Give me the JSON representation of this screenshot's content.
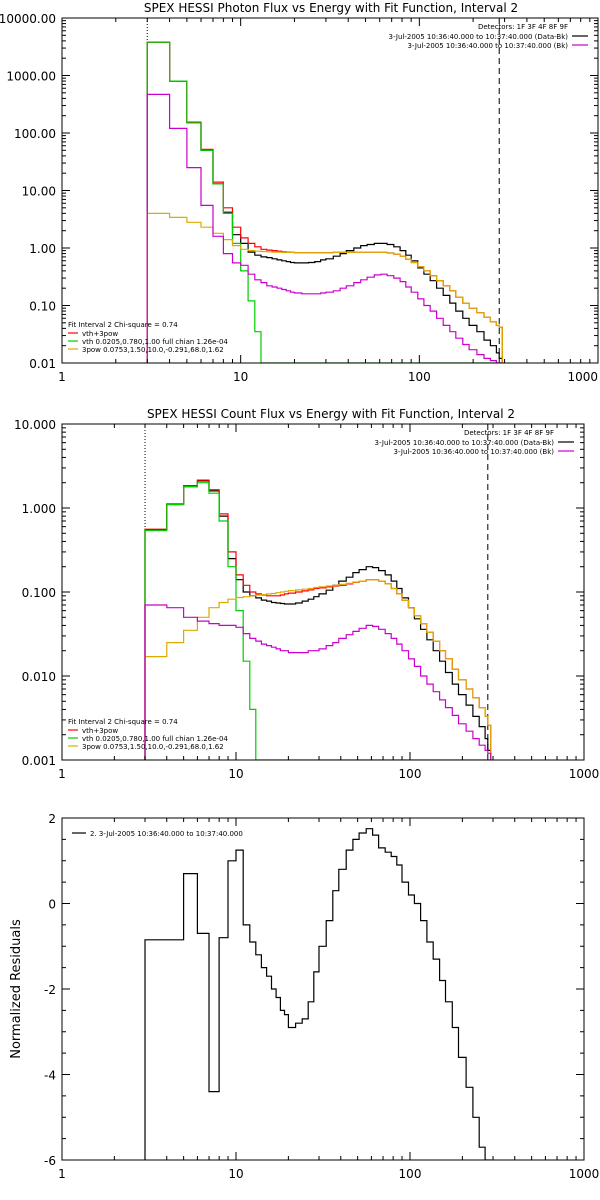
{
  "chart_data": [
    {
      "type": "line",
      "title": "SPEX HESSI Photon Flux vs Energy with Fit Function, Interval 2",
      "xlabel": "",
      "ylabel": "",
      "x_scale": "log",
      "y_scale": "log",
      "xlim": [
        1,
        1000
      ],
      "ylim": [
        0.01,
        10000
      ],
      "x_ticks": [
        "1",
        "10",
        "100",
        "1000"
      ],
      "y_ticks": [
        "0.01",
        "0.10",
        "1.00",
        "10.00",
        "100.00",
        "1000.00",
        "10000.00"
      ],
      "grid": false,
      "vlines": [
        {
          "x": 3,
          "style": "dotted"
        },
        {
          "x": 280,
          "style": "dashed"
        }
      ],
      "legend_topright": {
        "title": "Detectors: 1F 3F 4F 8F 9F",
        "entries": [
          {
            "text": "3-Jul-2005 10:36:40.000 to 10:37:40.000 (Data-Bk)",
            "color": "#000000"
          },
          {
            "text": "3-Jul-2005 10:36:40.000 to 10:37:40.000 (Bk)",
            "color": "#cc00cc"
          }
        ]
      },
      "legend_bottomleft": {
        "title": "Fit Interval  2   Chi-square = 0.74",
        "entries": [
          {
            "text": "vth+3pow",
            "color": "#ff0000"
          },
          {
            "text": "vth 0.0205,0.780,1.00  full chian 1.26e-04",
            "color": "#00cc00"
          },
          {
            "text": "3pow 0.0753,1.50,10.0,-0.291,68.0,1.62",
            "color": "#ddaa00"
          }
        ]
      },
      "x": [
        3,
        4,
        5,
        6,
        7,
        8,
        9,
        10,
        11,
        12,
        13,
        14,
        15,
        16,
        17,
        18,
        19,
        20,
        22,
        24,
        26,
        28,
        30,
        33,
        36,
        39,
        43,
        47,
        51,
        56,
        61,
        66,
        72,
        78,
        84,
        90,
        98,
        106,
        115,
        125,
        136,
        148,
        160,
        175,
        190,
        210,
        230,
        250,
        270,
        280
      ],
      "series": [
        {
          "color": "#000000",
          "values": [
            3800,
            800,
            150,
            50,
            13,
            4.2,
            1.7,
            1.2,
            0.85,
            0.75,
            0.7,
            0.68,
            0.65,
            0.62,
            0.6,
            0.58,
            0.56,
            0.55,
            0.55,
            0.56,
            0.58,
            0.62,
            0.65,
            0.72,
            0.8,
            0.9,
            1.0,
            1.1,
            1.15,
            1.2,
            1.2,
            1.15,
            1.05,
            0.9,
            0.75,
            0.6,
            0.45,
            0.35,
            0.27,
            0.2,
            0.15,
            0.11,
            0.08,
            0.06,
            0.045,
            0.035,
            0.025,
            0.02,
            0.015,
            0.012
          ]
        },
        {
          "color": "#ff0000",
          "values": [
            3800,
            800,
            155,
            52,
            14,
            5,
            2.3,
            1.5,
            1.2,
            1.05,
            0.95,
            0.92,
            0.9,
            0.88,
            0.86,
            0.85,
            0.84,
            0.83,
            0.83,
            0.83,
            0.83,
            0.83,
            0.83,
            0.84,
            0.84,
            0.84,
            0.85,
            0.85,
            0.85,
            0.85,
            0.84,
            0.82,
            0.78,
            0.72,
            0.64,
            0.56,
            0.47,
            0.4,
            0.33,
            0.27,
            0.22,
            0.18,
            0.14,
            0.11,
            0.09,
            0.075,
            0.062,
            0.052,
            0.045,
            0.042
          ]
        },
        {
          "color": "#00cc00",
          "values": [
            3800,
            800,
            150,
            50,
            13,
            4,
            1.2,
            0.4,
            0.12,
            0.035,
            0.01,
            0.01,
            0.01,
            0.01,
            0.01,
            0.01,
            0.01,
            0.01,
            0.01,
            0.01,
            0.01,
            0.01,
            0.01,
            0.01,
            0.01,
            0.01,
            0.01,
            0.01,
            0.01,
            0.01,
            0.01,
            0.01,
            0.01,
            0.01,
            0.01,
            0.01,
            0.01,
            0.01,
            0.01,
            0.01,
            0.01,
            0.01,
            0.01,
            0.01,
            0.01,
            0.01,
            0.01,
            0.01,
            0.01,
            0.01
          ]
        },
        {
          "color": "#ddaa00",
          "values": [
            4.0,
            3.4,
            2.8,
            2.3,
            1.8,
            1.4,
            1.1,
            0.95,
            0.9,
            0.88,
            0.87,
            0.86,
            0.85,
            0.85,
            0.84,
            0.84,
            0.84,
            0.83,
            0.83,
            0.83,
            0.83,
            0.83,
            0.83,
            0.84,
            0.84,
            0.84,
            0.85,
            0.85,
            0.85,
            0.85,
            0.84,
            0.82,
            0.78,
            0.72,
            0.64,
            0.56,
            0.47,
            0.4,
            0.33,
            0.27,
            0.22,
            0.18,
            0.14,
            0.11,
            0.09,
            0.075,
            0.062,
            0.052,
            0.045,
            0.042
          ]
        },
        {
          "color": "#cc00cc",
          "values": [
            470,
            120,
            25,
            5.5,
            1.6,
            0.8,
            0.55,
            0.5,
            0.35,
            0.28,
            0.25,
            0.22,
            0.21,
            0.2,
            0.19,
            0.18,
            0.17,
            0.165,
            0.16,
            0.16,
            0.16,
            0.165,
            0.17,
            0.18,
            0.2,
            0.22,
            0.25,
            0.28,
            0.31,
            0.34,
            0.35,
            0.33,
            0.3,
            0.26,
            0.21,
            0.17,
            0.13,
            0.1,
            0.08,
            0.06,
            0.045,
            0.035,
            0.027,
            0.021,
            0.017,
            0.014,
            0.012,
            0.011,
            0.01,
            0.01
          ]
        }
      ]
    },
    {
      "type": "line",
      "title": "SPEX HESSI Count Flux vs Energy with Fit Function, Interval 2",
      "xlabel": "",
      "ylabel": "",
      "x_scale": "log",
      "y_scale": "log",
      "xlim": [
        1,
        1000
      ],
      "ylim": [
        0.001,
        10
      ],
      "x_ticks": [
        "1",
        "10",
        "100",
        "1000"
      ],
      "y_ticks": [
        "0.001",
        "0.010",
        "0.100",
        "1.000",
        "10.000"
      ],
      "grid": false,
      "vlines": [
        {
          "x": 3,
          "style": "dotted"
        },
        {
          "x": 280,
          "style": "dashed"
        }
      ],
      "legend_topright": {
        "title": "Detectors: 1F 3F 4F 8F 9F",
        "entries": [
          {
            "text": "3-Jul-2005 10:36:40.000 to 10:37:40.000 (Data-Bk)",
            "color": "#000000"
          },
          {
            "text": "3-Jul-2005 10:36:40.000 to 10:37:40.000 (Bk)",
            "color": "#cc00cc"
          }
        ]
      },
      "legend_bottomleft": {
        "title": "Fit Interval  2   Chi-square = 0.74",
        "entries": [
          {
            "text": "vth+3pow",
            "color": "#ff0000"
          },
          {
            "text": "vth 0.0205,0.780,1.00  full chian 1.26e-04",
            "color": "#00cc00"
          },
          {
            "text": "3pow 0.0753,1.50,10.0,-0.291,68.0,1.62",
            "color": "#ddaa00"
          }
        ]
      },
      "x": [
        3,
        4,
        5,
        6,
        7,
        8,
        9,
        10,
        11,
        12,
        13,
        14,
        15,
        16,
        17,
        18,
        19,
        20,
        22,
        24,
        26,
        28,
        30,
        33,
        36,
        39,
        43,
        47,
        51,
        56,
        61,
        66,
        72,
        78,
        84,
        90,
        98,
        106,
        115,
        125,
        136,
        148,
        160,
        175,
        190,
        210,
        230,
        250,
        270,
        280
      ],
      "series": [
        {
          "color": "#000000",
          "values": [
            0.55,
            1.1,
            1.8,
            2.1,
            1.6,
            0.8,
            0.25,
            0.14,
            0.1,
            0.09,
            0.085,
            0.08,
            0.078,
            0.075,
            0.074,
            0.073,
            0.072,
            0.072,
            0.074,
            0.078,
            0.082,
            0.088,
            0.095,
            0.105,
            0.12,
            0.135,
            0.15,
            0.17,
            0.185,
            0.2,
            0.195,
            0.18,
            0.16,
            0.135,
            0.11,
            0.085,
            0.065,
            0.048,
            0.036,
            0.027,
            0.02,
            0.015,
            0.011,
            0.008,
            0.006,
            0.0045,
            0.0033,
            0.0025,
            0.0018,
            0.0013
          ]
        },
        {
          "color": "#ff0000",
          "values": [
            0.56,
            1.12,
            1.85,
            2.15,
            1.65,
            0.85,
            0.3,
            0.16,
            0.12,
            0.1,
            0.095,
            0.092,
            0.09,
            0.09,
            0.09,
            0.092,
            0.095,
            0.097,
            0.1,
            0.103,
            0.106,
            0.11,
            0.112,
            0.115,
            0.118,
            0.12,
            0.125,
            0.13,
            0.135,
            0.14,
            0.14,
            0.135,
            0.125,
            0.11,
            0.095,
            0.08,
            0.065,
            0.052,
            0.042,
            0.033,
            0.026,
            0.02,
            0.016,
            0.012,
            0.009,
            0.007,
            0.0055,
            0.0042,
            0.0033,
            0.0026
          ]
        },
        {
          "color": "#00cc00",
          "values": [
            0.54,
            1.1,
            1.8,
            2.0,
            1.5,
            0.7,
            0.2,
            0.06,
            0.015,
            0.004,
            0.001,
            0.001,
            0.001,
            0.001,
            0.001,
            0.001,
            0.001,
            0.001,
            0.001,
            0.001,
            0.001,
            0.001,
            0.001,
            0.001,
            0.001,
            0.001,
            0.001,
            0.001,
            0.001,
            0.001,
            0.001,
            0.001,
            0.001,
            0.001,
            0.001,
            0.001,
            0.001,
            0.001,
            0.001,
            0.001,
            0.001,
            0.001,
            0.001,
            0.001,
            0.001,
            0.001,
            0.001,
            0.001,
            0.001,
            0.001
          ]
        },
        {
          "color": "#ddaa00",
          "values": [
            0.017,
            0.025,
            0.035,
            0.05,
            0.065,
            0.075,
            0.082,
            0.086,
            0.088,
            0.09,
            0.092,
            0.093,
            0.095,
            0.096,
            0.098,
            0.1,
            0.102,
            0.104,
            0.106,
            0.108,
            0.11,
            0.113,
            0.115,
            0.118,
            0.12,
            0.123,
            0.127,
            0.131,
            0.135,
            0.14,
            0.14,
            0.135,
            0.125,
            0.11,
            0.095,
            0.08,
            0.065,
            0.052,
            0.042,
            0.033,
            0.026,
            0.02,
            0.016,
            0.012,
            0.009,
            0.007,
            0.0055,
            0.0042,
            0.0033,
            0.0026
          ]
        },
        {
          "color": "#cc00cc",
          "values": [
            0.07,
            0.065,
            0.05,
            0.045,
            0.042,
            0.04,
            0.04,
            0.038,
            0.032,
            0.028,
            0.026,
            0.024,
            0.023,
            0.022,
            0.021,
            0.02,
            0.02,
            0.019,
            0.019,
            0.019,
            0.02,
            0.02,
            0.021,
            0.023,
            0.025,
            0.028,
            0.031,
            0.034,
            0.037,
            0.04,
            0.039,
            0.036,
            0.032,
            0.028,
            0.024,
            0.02,
            0.016,
            0.013,
            0.01,
            0.008,
            0.0065,
            0.0052,
            0.0042,
            0.0034,
            0.0027,
            0.0022,
            0.0018,
            0.0015,
            0.0013,
            0.0012
          ]
        }
      ]
    },
    {
      "type": "line",
      "title": "",
      "xlabel": "",
      "ylabel": "Normalized Residuals",
      "x_scale": "log",
      "y_scale": "linear",
      "xlim": [
        1,
        1000
      ],
      "ylim": [
        -6,
        2
      ],
      "x_ticks": [
        "1",
        "10",
        "100",
        "1000"
      ],
      "y_ticks": [
        "-6",
        "-4",
        "-2",
        "0",
        "2"
      ],
      "grid": false,
      "legend_topleft": {
        "entries": [
          {
            "text": "2.  3-Jul-2005 10:36:40.000 to 10:37:40.000",
            "color": "#000000"
          }
        ]
      },
      "x": [
        3,
        4,
        5,
        6,
        7,
        8,
        9,
        10,
        11,
        12,
        13,
        14,
        15,
        16,
        17,
        18,
        19,
        20,
        22,
        24,
        26,
        28,
        30,
        33,
        36,
        39,
        43,
        47,
        51,
        56,
        61,
        66,
        72,
        78,
        84,
        90,
        98,
        106,
        115,
        125,
        136,
        148,
        160,
        175,
        190,
        210,
        230,
        250,
        270,
        280
      ],
      "series": [
        {
          "color": "#000000",
          "values": [
            -0.85,
            -0.85,
            0.7,
            -0.7,
            -4.4,
            -0.8,
            1.0,
            1.25,
            -0.5,
            -0.9,
            -1.2,
            -1.5,
            -1.7,
            -2.0,
            -2.2,
            -2.5,
            -2.6,
            -2.9,
            -2.8,
            -2.7,
            -2.3,
            -1.6,
            -1.0,
            -0.4,
            0.3,
            0.8,
            1.25,
            1.5,
            1.65,
            1.75,
            1.6,
            1.3,
            1.2,
            1.1,
            0.9,
            0.5,
            0.2,
            0.0,
            -0.4,
            -0.9,
            -1.3,
            -1.8,
            -2.3,
            -2.9,
            -3.6,
            -4.3,
            -5.0,
            -5.7,
            -6.0,
            -6.0
          ]
        }
      ]
    }
  ]
}
